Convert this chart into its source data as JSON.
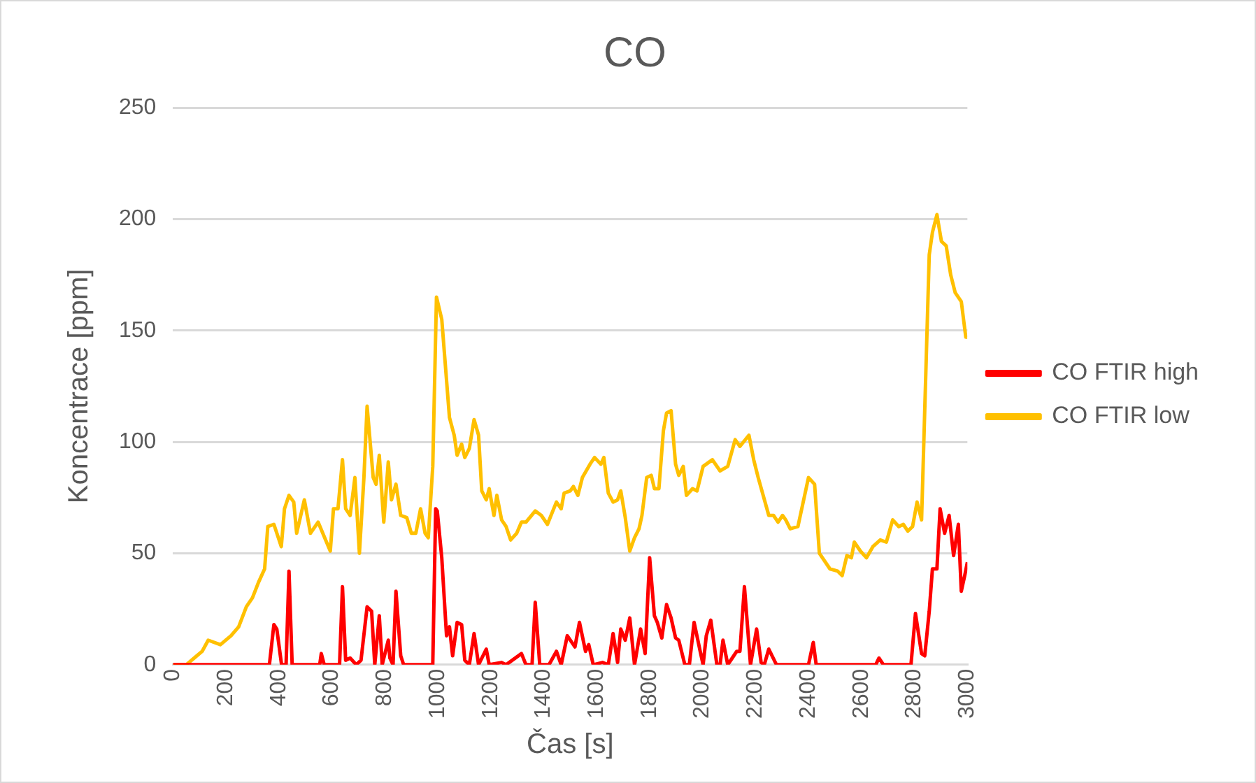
{
  "chart_data": {
    "type": "line",
    "title": "CO",
    "xlabel": "Čas [s]",
    "ylabel": "Koncentrace [ppm]",
    "xlim": [
      0,
      3000
    ],
    "xticks": [
      0,
      200,
      400,
      600,
      800,
      1000,
      1200,
      1400,
      1600,
      1800,
      2000,
      2200,
      2400,
      2600,
      2800,
      3000
    ],
    "ylim": [
      0,
      250
    ],
    "yticks": [
      0,
      50,
      100,
      150,
      200,
      250
    ],
    "grid": "y",
    "legend": "right",
    "marker": "none",
    "line_style": "solid",
    "series": [
      {
        "name": "CO FTIR high",
        "color": "#ff0000",
        "x": [
          0,
          364,
          381,
          392,
          410,
          427,
          438,
          450,
          554,
          560,
          571,
          629,
          640,
          652,
          669,
          692,
          710,
          733,
          750,
          762,
          779,
          790,
          813,
          819,
          831,
          842,
          860,
          871,
          981,
          992,
          998,
          1015,
          1033,
          1044,
          1056,
          1073,
          1090,
          1102,
          1119,
          1137,
          1154,
          1183,
          1194,
          1241,
          1258,
          1316,
          1333,
          1356,
          1368,
          1385,
          1420,
          1448,
          1466,
          1489,
          1518,
          1535,
          1558,
          1570,
          1587,
          1622,
          1644,
          1662,
          1679,
          1691,
          1708,
          1725,
          1743,
          1766,
          1783,
          1800,
          1818,
          1829,
          1846,
          1864,
          1881,
          1898,
          1910,
          1933,
          1950,
          1968,
          1991,
          2002,
          2014,
          2031,
          2054,
          2066,
          2077,
          2095,
          2112,
          2129,
          2141,
          2158,
          2181,
          2204,
          2221,
          2233,
          2250,
          2279,
          2400,
          2418,
          2429,
          2654,
          2666,
          2683,
          2787,
          2804,
          2827,
          2839,
          2856,
          2868,
          2885,
          2897,
          2914,
          2931,
          2948,
          2966,
          2977,
          2990,
          3000
        ],
        "values": [
          0,
          0,
          18,
          16,
          0,
          0,
          42,
          0,
          0,
          5,
          0,
          0,
          35,
          2,
          3,
          0,
          2,
          26,
          24,
          0,
          22,
          0,
          11,
          3,
          0,
          33,
          4,
          0,
          0,
          70,
          69,
          48,
          13,
          17,
          4,
          19,
          18,
          2,
          0,
          14,
          0,
          7,
          0,
          1,
          0,
          5,
          0,
          0,
          28,
          0,
          0,
          6,
          0,
          13,
          8,
          19,
          6,
          9,
          0,
          1,
          0,
          14,
          1,
          16,
          11,
          21,
          0,
          16,
          5,
          48,
          22,
          19,
          12,
          27,
          21,
          12,
          11,
          0,
          0,
          19,
          6,
          0,
          13,
          20,
          0,
          0,
          11,
          0,
          3,
          6,
          6,
          35,
          0,
          16,
          1,
          0,
          7,
          0,
          0,
          10,
          0,
          0,
          3,
          0,
          0,
          23,
          5,
          4,
          24,
          43,
          43,
          70,
          59,
          67,
          49,
          63,
          33,
          40,
          46
        ]
      },
      {
        "name": "CO FTIR low",
        "color": "#ffc000",
        "x": [
          0,
          50,
          80,
          110,
          133,
          179,
          219,
          248,
          277,
          300,
          323,
          346,
          358,
          381,
          409,
          421,
          438,
          456,
          467,
          496,
          519,
          548,
          594,
          606,
          623,
          640,
          652,
          669,
          687,
          704,
          721,
          733,
          756,
          767,
          779,
          796,
          813,
          825,
          842,
          860,
          883,
          900,
          917,
          935,
          952,
          964,
          981,
          995,
          1015,
          1044,
          1062,
          1073,
          1090,
          1102,
          1119,
          1137,
          1154,
          1166,
          1183,
          1194,
          1212,
          1223,
          1241,
          1258,
          1275,
          1298,
          1316,
          1333,
          1368,
          1391,
          1414,
          1448,
          1466,
          1477,
          1500,
          1512,
          1529,
          1546,
          1575,
          1592,
          1616,
          1627,
          1644,
          1662,
          1679,
          1691,
          1708,
          1725,
          1743,
          1760,
          1771,
          1789,
          1806,
          1818,
          1835,
          1852,
          1864,
          1881,
          1898,
          1910,
          1927,
          1939,
          1962,
          1979,
          2002,
          2037,
          2066,
          2095,
          2123,
          2141,
          2175,
          2193,
          2210,
          2250,
          2268,
          2285,
          2302,
          2314,
          2331,
          2360,
          2400,
          2423,
          2441,
          2481,
          2510,
          2527,
          2545,
          2562,
          2573,
          2596,
          2619,
          2643,
          2671,
          2694,
          2718,
          2741,
          2758,
          2775,
          2793,
          2810,
          2827,
          2856,
          2868,
          2885,
          2902,
          2920,
          2937,
          2954,
          2977,
          2994,
          3000
        ],
        "values": [
          0,
          0,
          3,
          6,
          11,
          9,
          13,
          17,
          26,
          30,
          37,
          43,
          62,
          63,
          53,
          70,
          76,
          73,
          59,
          74,
          59,
          64,
          51,
          70,
          70,
          92,
          70,
          67,
          84,
          50,
          84,
          116,
          84,
          81,
          94,
          64,
          91,
          74,
          81,
          67,
          66,
          59,
          59,
          70,
          59,
          57,
          89,
          165,
          155,
          111,
          103,
          94,
          99,
          93,
          97,
          110,
          103,
          78,
          74,
          79,
          67,
          76,
          65,
          62,
          56,
          59,
          64,
          64,
          69,
          67,
          63,
          73,
          70,
          77,
          78,
          80,
          76,
          84,
          90,
          93,
          90,
          93,
          77,
          73,
          74,
          78,
          66,
          51,
          57,
          61,
          67,
          84,
          85,
          79,
          79,
          105,
          113,
          114,
          90,
          85,
          89,
          76,
          79,
          78,
          89,
          92,
          87,
          89,
          101,
          98,
          103,
          92,
          84,
          67,
          67,
          64,
          67,
          65,
          61,
          62,
          84,
          81,
          50,
          43,
          42,
          40,
          49,
          48,
          55,
          51,
          48,
          53,
          56,
          55,
          65,
          62,
          63,
          60,
          62,
          73,
          65,
          184,
          194,
          202,
          190,
          188,
          175,
          167,
          163,
          147,
          147
        ]
      }
    ]
  }
}
